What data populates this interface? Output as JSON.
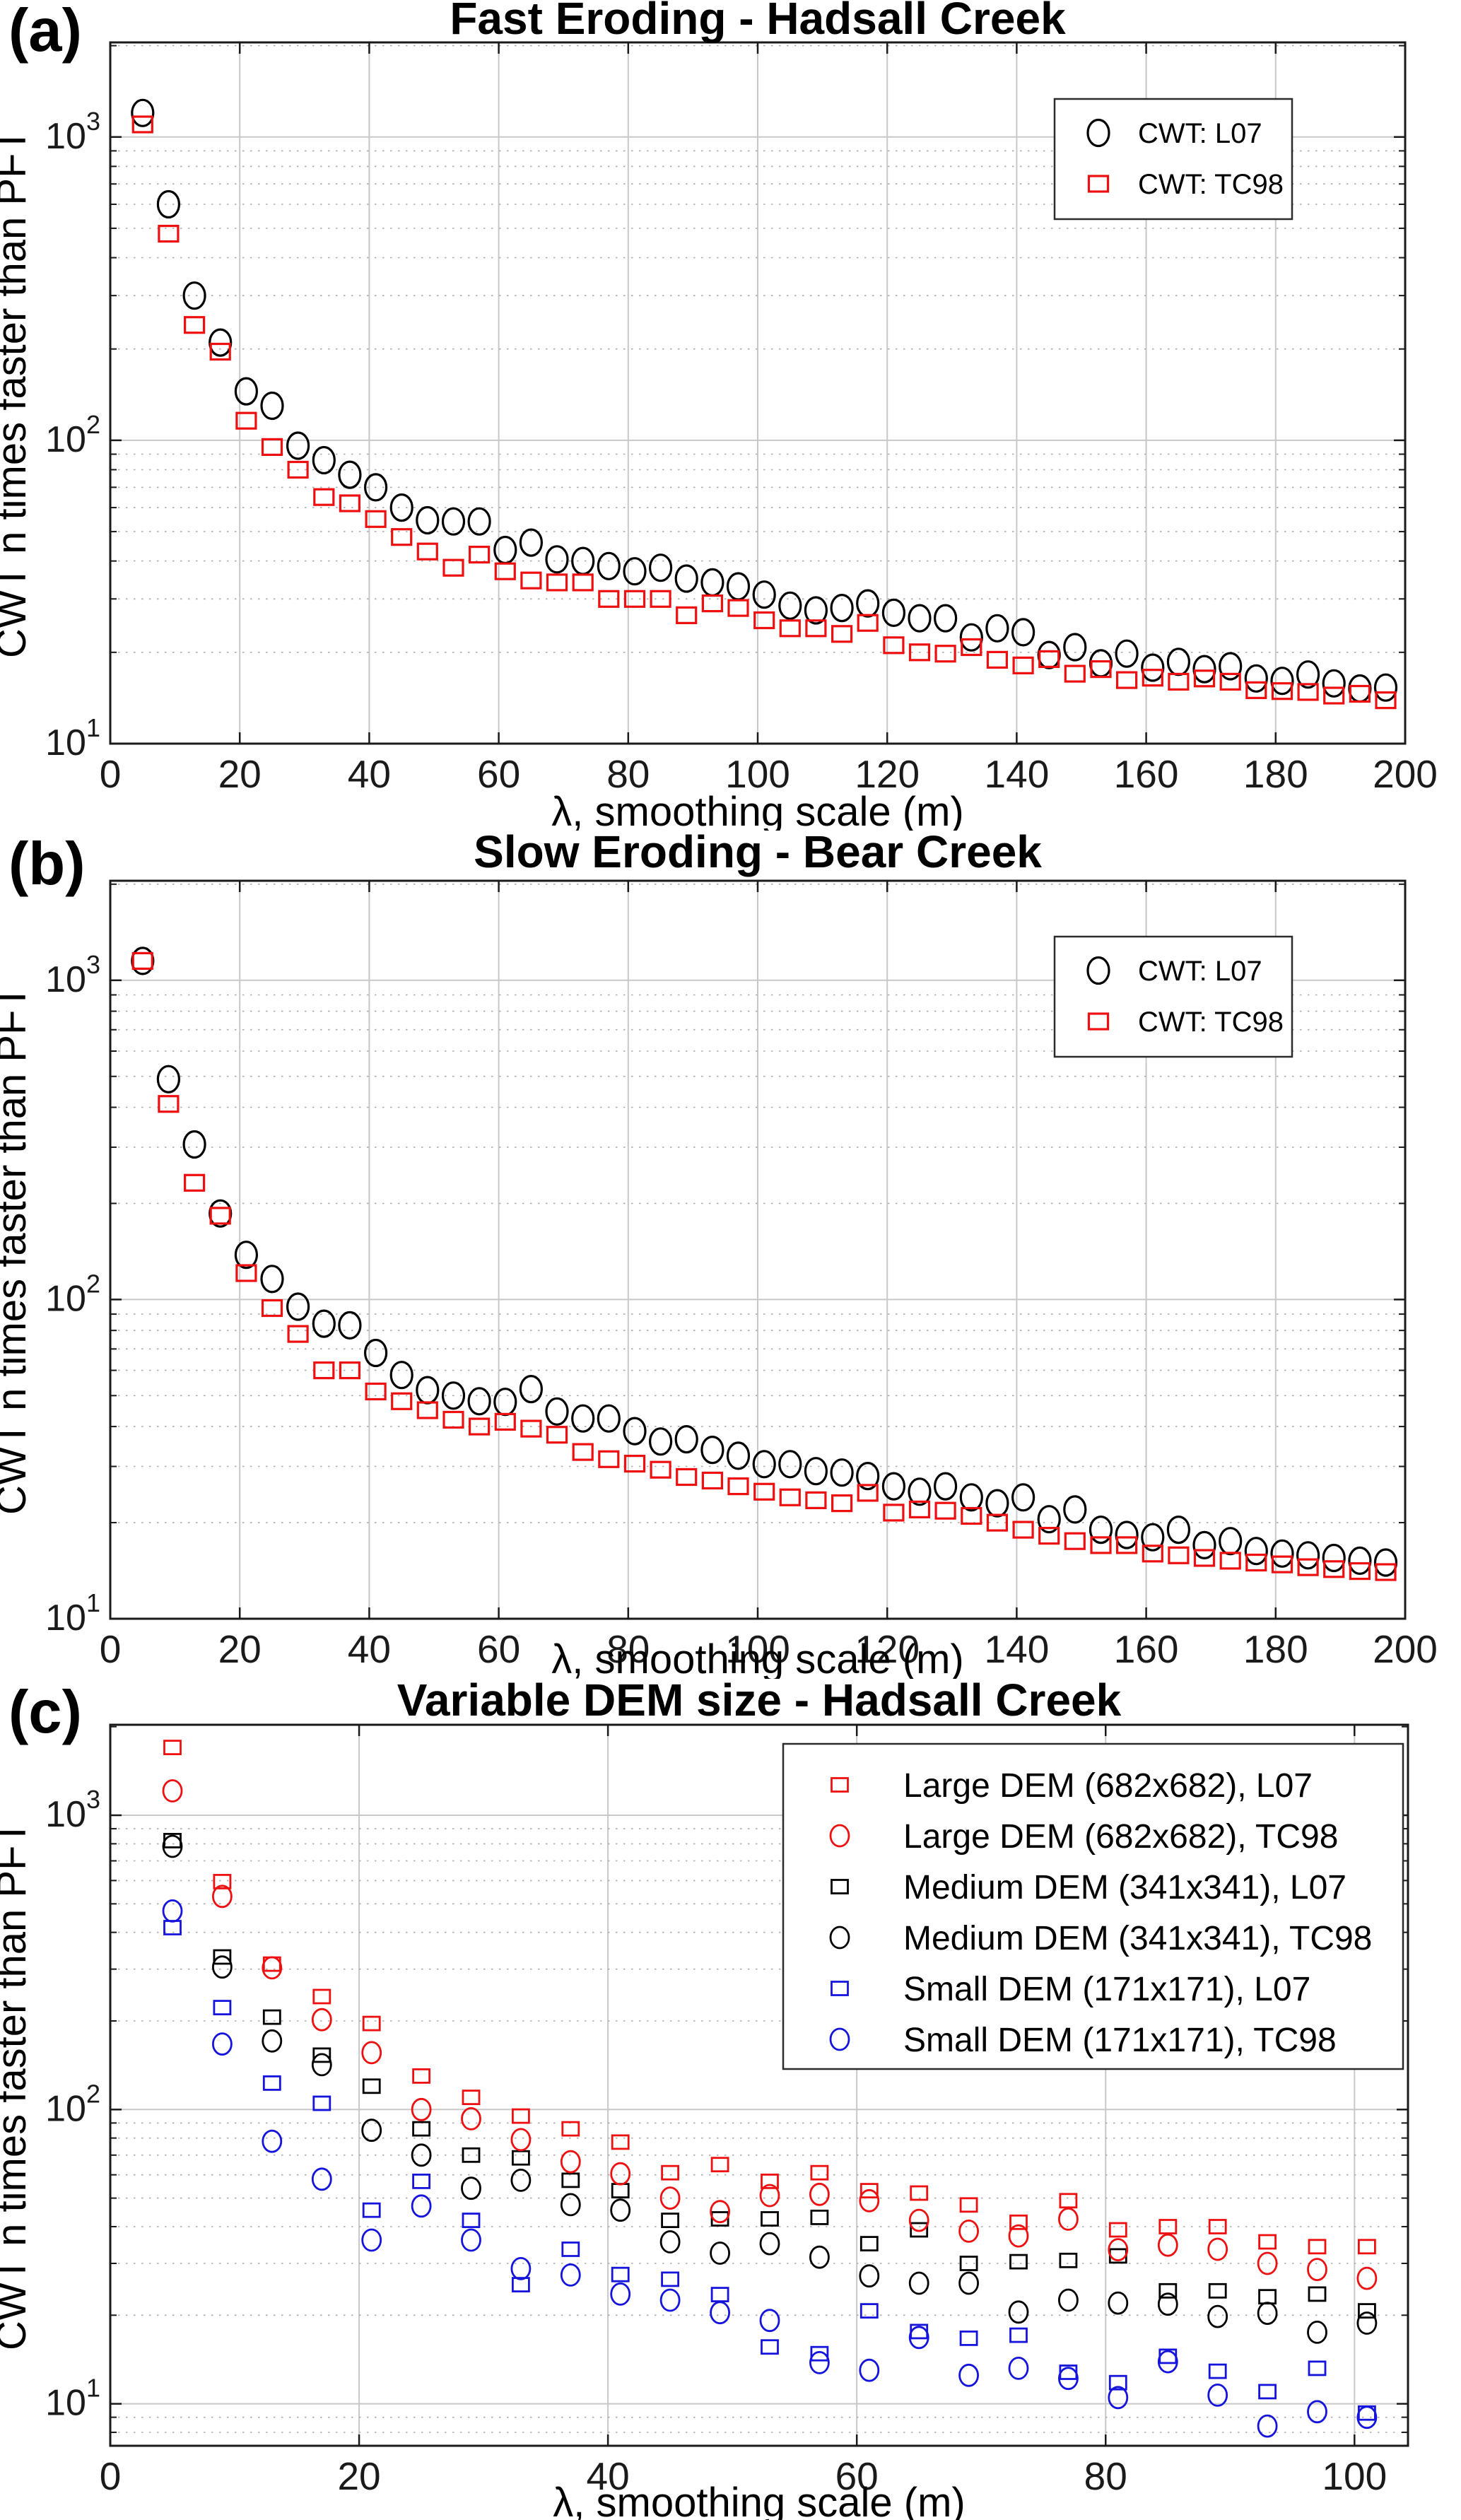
{
  "colors": {
    "black": "#000000",
    "red": "#ee1010",
    "blue": "#1414dd"
  },
  "style": {
    "background": "#ffffff",
    "grid_major": "#c8c8c8",
    "grid_minor": "#ababab",
    "spine": "#1a1a1a",
    "legend_border": "#2b2b2b"
  },
  "chart_data": [
    {
      "type": "scatter",
      "panel_label": "(a)",
      "title": "Fast Eroding - Hadsall Creek",
      "xlabel": "λ, smoothing scale (m)",
      "ylabel": "CWT n times faster than PFT",
      "xlim": [
        0,
        200
      ],
      "x_ticks": [
        0,
        20,
        40,
        60,
        80,
        100,
        120,
        140,
        160,
        180,
        200
      ],
      "ylog": true,
      "ylim": [
        10,
        2050
      ],
      "y_tick_exponents": [
        1,
        2,
        3
      ],
      "grid": true,
      "legend_position": "top-right",
      "x": [
        5,
        9,
        13,
        17,
        21,
        25,
        29,
        33,
        37,
        41,
        45,
        49,
        53,
        57,
        61,
        65,
        69,
        73,
        77,
        81,
        85,
        89,
        93,
        97,
        101,
        105,
        109,
        113,
        117,
        121,
        125,
        129,
        133,
        137,
        141,
        145,
        149,
        153,
        157,
        161,
        165,
        169,
        173,
        177,
        181,
        185,
        189,
        193,
        197
      ],
      "series": [
        {
          "name": "CWT: L07",
          "marker": "circle",
          "color": "black",
          "values": [
            1200,
            600,
            300,
            210,
            145,
            130,
            96,
            86,
            77,
            70,
            60,
            54.5,
            54,
            54,
            43.5,
            46,
            40.5,
            40,
            38.5,
            37,
            38,
            35,
            34,
            33,
            31,
            28.5,
            27.5,
            28,
            29,
            27,
            25.9,
            25.9,
            22.4,
            24,
            23.3,
            19.6,
            20.8,
            18.4,
            19.8,
            17.8,
            18.6,
            17.6,
            18,
            16.4,
            16.1,
            16.9,
            15.8,
            15.2,
            15.3
          ]
        },
        {
          "name": "CWT: TC98",
          "marker": "square",
          "color": "red",
          "values": [
            1100,
            480,
            240,
            196,
            116,
            95,
            80,
            65,
            62,
            55,
            48,
            43,
            38,
            42,
            37,
            34.5,
            34,
            34,
            30,
            30,
            30,
            26.5,
            29,
            28,
            25.5,
            24,
            24,
            23,
            25,
            21.1,
            20,
            19.8,
            20.8,
            18.9,
            18.1,
            19,
            17,
            17.6,
            16.2,
            16.5,
            16,
            16.4,
            16,
            15,
            14.9,
            14.8,
            14.4,
            14.6,
            13.9
          ]
        }
      ],
      "draw_order": [
        0,
        1
      ]
    },
    {
      "type": "scatter",
      "panel_label": "(b)",
      "title": "Slow Eroding - Bear Creek",
      "xlabel": "λ, smoothing scale (m)",
      "ylabel": "CWT n times faster than PFT",
      "xlim": [
        0,
        200
      ],
      "x_ticks": [
        0,
        20,
        40,
        60,
        80,
        100,
        120,
        140,
        160,
        180,
        200
      ],
      "ylog": true,
      "ylim": [
        10,
        2050
      ],
      "y_tick_exponents": [
        1,
        2,
        3
      ],
      "grid": true,
      "legend_position": "top-right",
      "x": [
        5,
        9,
        13,
        17,
        21,
        25,
        29,
        33,
        37,
        41,
        45,
        49,
        53,
        57,
        61,
        65,
        69,
        73,
        77,
        81,
        85,
        89,
        93,
        97,
        101,
        105,
        109,
        113,
        117,
        121,
        125,
        129,
        133,
        137,
        141,
        145,
        149,
        153,
        157,
        161,
        165,
        169,
        173,
        177,
        181,
        185,
        189,
        193,
        197
      ],
      "series": [
        {
          "name": "CWT: L07",
          "marker": "circle",
          "color": "black",
          "values": [
            1150,
            490,
            306,
            186,
            138,
            116,
            95,
            84,
            83,
            68,
            58,
            52,
            50,
            48,
            47.8,
            52.4,
            44.6,
            42.4,
            42.4,
            38.7,
            35.9,
            36.5,
            33.8,
            32.4,
            30.5,
            30.5,
            29,
            28.7,
            28,
            26,
            25,
            26,
            24,
            23,
            24,
            20.5,
            22,
            19,
            18.3,
            18,
            19,
            17,
            17.5,
            16.3,
            16,
            15.8,
            15.5,
            15.2,
            15
          ]
        },
        {
          "name": "CWT: TC98",
          "marker": "square",
          "color": "red",
          "values": [
            1150,
            410,
            232,
            183,
            121,
            94,
            78,
            60,
            60,
            51.5,
            48,
            45,
            42,
            40,
            41.4,
            39.4,
            37.7,
            33.3,
            31.6,
            30.6,
            29.3,
            27.8,
            27.1,
            26,
            25,
            24,
            23.5,
            23,
            24.8,
            21.5,
            22,
            21.8,
            21,
            20,
            19,
            18.2,
            17.5,
            17,
            17,
            16,
            15.8,
            15.5,
            15.2,
            15,
            14.8,
            14.5,
            14.3,
            14.1,
            14
          ]
        }
      ],
      "draw_order": [
        0,
        1
      ]
    },
    {
      "type": "scatter",
      "panel_label": "(c)",
      "title": "Variable DEM size - Hadsall Creek",
      "xlabel": "λ, smoothing scale (m)",
      "ylabel": "CWT n times faster than PFT",
      "xlim": [
        0,
        104.3
      ],
      "x_ticks": [
        0,
        20,
        40,
        60,
        80,
        100
      ],
      "ylog": true,
      "ylim": [
        7.2,
        2030
      ],
      "y_tick_exponents": [
        1,
        2,
        3
      ],
      "grid": true,
      "legend_position": "top-right",
      "x": [
        5,
        9,
        13,
        17,
        21,
        25,
        29,
        33,
        37,
        41,
        45,
        49,
        53,
        57,
        61,
        65,
        69,
        73,
        77,
        81,
        85,
        89,
        93,
        97,
        101
      ],
      "series": [
        {
          "name": "Large DEM (682x682), L07",
          "marker": "square",
          "color": "red",
          "values": [
            1700,
            595,
            312,
            242,
            196,
            130,
            110,
            95,
            86,
            77.5,
            61,
            65,
            57,
            61,
            53,
            52,
            47.4,
            41.4,
            49,
            39,
            40,
            40,
            35.5,
            34.2,
            34.2
          ]
        },
        {
          "name": "Large DEM (682x682), TC98",
          "marker": "circle",
          "color": "red",
          "values": [
            1210,
            530,
            303,
            202,
            156,
            100,
            93,
            79,
            66.5,
            60.5,
            50,
            45,
            51,
            51.5,
            49,
            42,
            38.6,
            37.2,
            42.4,
            33.4,
            34.6,
            33.5,
            30,
            28.6,
            26.7
          ]
        },
        {
          "name": "Medium DEM (341x341), L07",
          "marker": "square",
          "color": "black",
          "values": [
            820,
            330,
            206,
            153,
            120,
            86,
            70,
            68.5,
            57.5,
            53,
            42,
            42.5,
            42.5,
            43,
            35,
            39,
            30,
            30.4,
            30.7,
            31.8,
            24.2,
            24.2,
            23.1,
            23.6,
            20.7
          ]
        },
        {
          "name": "Medium DEM (341x341), TC98",
          "marker": "circle",
          "color": "black",
          "values": [
            784,
            305,
            171,
            142,
            85,
            70,
            54,
            57.5,
            47.5,
            45.5,
            35.5,
            32.5,
            35,
            31.5,
            27.2,
            25.7,
            25.7,
            20.5,
            22.5,
            22,
            21.8,
            19.8,
            20.3,
            17.5,
            18.8
          ]
        },
        {
          "name": "Small DEM (171x171), L07",
          "marker": "square",
          "color": "blue",
          "values": [
            415,
            222,
            123,
            105,
            45.5,
            57,
            42,
            25.4,
            33.5,
            27.5,
            26.5,
            23.5,
            15.6,
            14.8,
            20.7,
            17.6,
            16.7,
            17.1,
            12.8,
            11.8,
            14.5,
            12.9,
            11,
            13.2,
            9.3
          ]
        },
        {
          "name": "Small DEM (171x171), TC98",
          "marker": "circle",
          "color": "blue",
          "values": [
            473,
            167,
            78,
            58,
            36,
            47,
            36,
            28.8,
            27.4,
            23.6,
            22.5,
            20.4,
            19.2,
            13.8,
            13,
            16.8,
            12.5,
            13.2,
            12.2,
            10.5,
            13.9,
            10.7,
            8.4,
            9.4,
            9
          ]
        }
      ],
      "draw_order": [
        5,
        4,
        3,
        2,
        1,
        0
      ]
    }
  ]
}
